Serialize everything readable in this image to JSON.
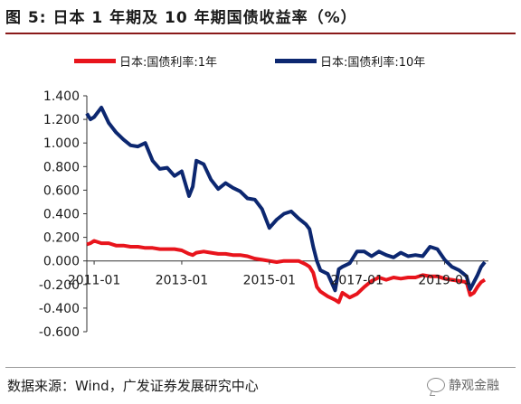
{
  "figure": {
    "title": "图 5:  日本 1 年期及 10 年期国债收益率（%）",
    "source": "数据来源：Wind，广发证券发展研究中心",
    "watermark": "静观金融"
  },
  "colors": {
    "series_1y": "#e8141c",
    "series_10y": "#0c2770",
    "title_rule": "#8a1a1a"
  },
  "chart_data": {
    "type": "line",
    "title": "",
    "xlabel": "",
    "ylabel": "",
    "ylim": [
      -0.6,
      1.4
    ],
    "yticks": [
      "1.400",
      "1.200",
      "1.000",
      "0.800",
      "0.600",
      "0.400",
      "0.200",
      "0.000",
      "-0.200",
      "-0.400",
      "-0.600"
    ],
    "ytick_values": [
      1.4,
      1.2,
      1.0,
      0.8,
      0.6,
      0.4,
      0.2,
      0.0,
      -0.2,
      -0.4,
      -0.6
    ],
    "xticks": [
      "2011-01",
      "2013-01",
      "2015-01",
      "2017-01",
      "2019-01"
    ],
    "xtick_values": [
      "2011-01",
      "2013-01",
      "2015-01",
      "2017-01",
      "2019-01"
    ],
    "xlim": [
      "2010-11",
      "2020-01"
    ],
    "grid": false,
    "legend_position": "top",
    "x": [
      "2010-11",
      "2010-12",
      "2011-01",
      "2011-03",
      "2011-05",
      "2011-07",
      "2011-09",
      "2011-11",
      "2012-01",
      "2012-03",
      "2012-05",
      "2012-07",
      "2012-09",
      "2012-11",
      "2013-01",
      "2013-03",
      "2013-04",
      "2013-05",
      "2013-07",
      "2013-09",
      "2013-11",
      "2014-01",
      "2014-03",
      "2014-05",
      "2014-07",
      "2014-09",
      "2014-11",
      "2015-01",
      "2015-03",
      "2015-05",
      "2015-07",
      "2015-09",
      "2015-11",
      "2015-12",
      "2016-01",
      "2016-02",
      "2016-03",
      "2016-05",
      "2016-07",
      "2016-08",
      "2016-09",
      "2016-11",
      "2017-01",
      "2017-03",
      "2017-05",
      "2017-07",
      "2017-09",
      "2017-11",
      "2018-01",
      "2018-03",
      "2018-05",
      "2018-07",
      "2018-09",
      "2018-11",
      "2019-01",
      "2019-03",
      "2019-05",
      "2019-07",
      "2019-08",
      "2019-09",
      "2019-10",
      "2019-11",
      "2019-12"
    ],
    "series": [
      {
        "name": "日本:国债利率:1年",
        "color": "#e8141c",
        "values": [
          0.14,
          0.15,
          0.17,
          0.15,
          0.15,
          0.13,
          0.13,
          0.12,
          0.12,
          0.11,
          0.11,
          0.1,
          0.1,
          0.1,
          0.09,
          0.06,
          0.05,
          0.07,
          0.08,
          0.07,
          0.06,
          0.06,
          0.05,
          0.05,
          0.04,
          0.02,
          0.01,
          0.0,
          -0.01,
          0.0,
          0.0,
          0.0,
          -0.03,
          -0.05,
          -0.1,
          -0.22,
          -0.26,
          -0.3,
          -0.33,
          -0.35,
          -0.27,
          -0.31,
          -0.28,
          -0.22,
          -0.17,
          -0.14,
          -0.16,
          -0.14,
          -0.15,
          -0.14,
          -0.14,
          -0.12,
          -0.13,
          -0.13,
          -0.15,
          -0.16,
          -0.17,
          -0.18,
          -0.29,
          -0.27,
          -0.22,
          -0.18,
          -0.16
        ]
      },
      {
        "name": "日本:国债利率:10年",
        "color": "#0c2770",
        "values": [
          1.25,
          1.2,
          1.22,
          1.3,
          1.17,
          1.09,
          1.03,
          0.98,
          0.97,
          1.0,
          0.85,
          0.78,
          0.79,
          0.72,
          0.76,
          0.55,
          0.63,
          0.85,
          0.82,
          0.69,
          0.61,
          0.66,
          0.62,
          0.59,
          0.53,
          0.52,
          0.44,
          0.28,
          0.35,
          0.4,
          0.42,
          0.36,
          0.31,
          0.27,
          0.12,
          0.0,
          -0.08,
          -0.11,
          -0.25,
          -0.07,
          -0.05,
          -0.02,
          0.08,
          0.08,
          0.04,
          0.08,
          0.05,
          0.03,
          0.07,
          0.04,
          0.05,
          0.04,
          0.12,
          0.1,
          0.01,
          -0.05,
          -0.08,
          -0.13,
          -0.24,
          -0.18,
          -0.12,
          -0.05,
          -0.01
        ]
      }
    ]
  }
}
